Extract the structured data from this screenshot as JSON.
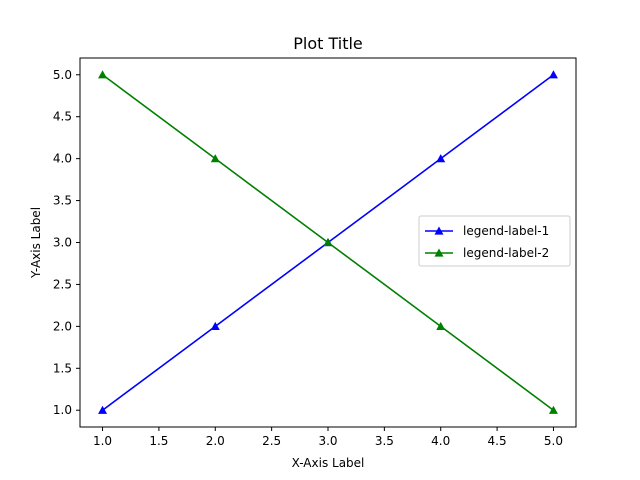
{
  "chart_data": {
    "type": "line",
    "title": "Plot Title",
    "xlabel": "X-Axis Label",
    "ylabel": "Y-Axis Label",
    "x": [
      1,
      2,
      3,
      4,
      5
    ],
    "series": [
      {
        "name": "legend-label-1",
        "values": [
          1,
          2,
          3,
          4,
          5
        ],
        "color": "#0000ff",
        "marker": "triangle-up"
      },
      {
        "name": "legend-label-2",
        "values": [
          5,
          4,
          3,
          2,
          1
        ],
        "color": "#008000",
        "marker": "triangle-up"
      }
    ],
    "xlim": [
      0.8,
      5.2
    ],
    "ylim": [
      0.8,
      5.2
    ],
    "xticks": [
      "1.0",
      "1.5",
      "2.0",
      "2.5",
      "3.0",
      "3.5",
      "4.0",
      "4.5",
      "5.0"
    ],
    "yticks": [
      "1.0",
      "1.5",
      "2.0",
      "2.5",
      "3.0",
      "3.5",
      "4.0",
      "4.5",
      "5.0"
    ],
    "grid": false,
    "legend_position": "center-right"
  }
}
